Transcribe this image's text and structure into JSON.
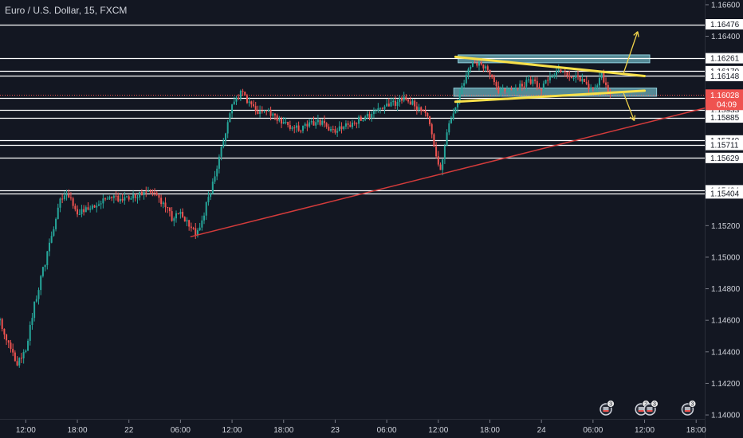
{
  "chart_data": {
    "type": "candlestick",
    "title": "Euro / U.S. Dollar, 15, FXCM",
    "ylim": [
      1.1397,
      1.1663
    ],
    "x_range_hours": [
      -3,
      79
    ],
    "grid": false,
    "y_ticks": [
      "1.16600",
      "1.16400",
      "1.15200",
      "1.15000",
      "1.14800",
      "1.14600",
      "1.14400",
      "1.14200",
      "1.14000"
    ],
    "x_ticks": [
      {
        "t": 0,
        "label": "12:00"
      },
      {
        "t": 6,
        "label": "18:00"
      },
      {
        "t": 12,
        "label": "22"
      },
      {
        "t": 18,
        "label": "06:00"
      },
      {
        "t": 24,
        "label": "12:00"
      },
      {
        "t": 30,
        "label": "18:00"
      },
      {
        "t": 36,
        "label": "23"
      },
      {
        "t": 42,
        "label": "06:00"
      },
      {
        "t": 48,
        "label": "12:00"
      },
      {
        "t": 54,
        "label": "18:00"
      },
      {
        "t": 60,
        "label": "24"
      },
      {
        "t": 66,
        "label": "06:00"
      },
      {
        "t": 72,
        "label": "12:00"
      },
      {
        "t": 78,
        "label": "18:00"
      }
    ],
    "horizontal_levels": [
      {
        "value": 1.16476,
        "label": "1.16476"
      },
      {
        "value": 1.16261,
        "label": "1.16261"
      },
      {
        "value": 1.16179,
        "label": "1.16179"
      },
      {
        "value": 1.16148,
        "label": "1.16148"
      },
      {
        "value": 1.1601,
        "label": "1.16010"
      },
      {
        "value": 1.15933,
        "label": "1.15933"
      },
      {
        "value": 1.15885,
        "label": "1.15885"
      },
      {
        "value": 1.1574,
        "label": "1.15740"
      },
      {
        "value": 1.15711,
        "label": "1.15711"
      },
      {
        "value": 1.15629,
        "label": "1.15629"
      },
      {
        "value": 1.15424,
        "label": "1.15424"
      },
      {
        "value": 1.15404,
        "label": "1.15404"
      }
    ],
    "current_price": {
      "value": 1.16028,
      "label": "1.16028",
      "countdown": "04:09"
    },
    "key_points": [
      {
        "t": -3,
        "price": 1.146
      },
      {
        "t": -2,
        "price": 1.1445
      },
      {
        "t": -1,
        "price": 1.1432
      },
      {
        "t": 0,
        "price": 1.144
      },
      {
        "t": 1,
        "price": 1.147
      },
      {
        "t": 2,
        "price": 1.1492
      },
      {
        "t": 3,
        "price": 1.1512
      },
      {
        "t": 4,
        "price": 1.1535
      },
      {
        "t": 5,
        "price": 1.154
      },
      {
        "t": 6,
        "price": 1.1528
      },
      {
        "t": 8,
        "price": 1.1532
      },
      {
        "t": 10,
        "price": 1.1538
      },
      {
        "t": 12,
        "price": 1.1537
      },
      {
        "t": 14,
        "price": 1.1542
      },
      {
        "t": 16,
        "price": 1.1535
      },
      {
        "t": 17,
        "price": 1.1525
      },
      {
        "t": 18,
        "price": 1.1528
      },
      {
        "t": 19,
        "price": 1.152
      },
      {
        "t": 20,
        "price": 1.1515
      },
      {
        "t": 21,
        "price": 1.1533
      },
      {
        "t": 22,
        "price": 1.155
      },
      {
        "t": 23,
        "price": 1.1575
      },
      {
        "t": 24,
        "price": 1.1595
      },
      {
        "t": 25,
        "price": 1.1605
      },
      {
        "t": 26,
        "price": 1.1598
      },
      {
        "t": 27,
        "price": 1.159
      },
      {
        "t": 28,
        "price": 1.1592
      },
      {
        "t": 30,
        "price": 1.1584
      },
      {
        "t": 32,
        "price": 1.1582
      },
      {
        "t": 34,
        "price": 1.1586
      },
      {
        "t": 36,
        "price": 1.158
      },
      {
        "t": 38,
        "price": 1.1585
      },
      {
        "t": 40,
        "price": 1.159
      },
      {
        "t": 42,
        "price": 1.1596
      },
      {
        "t": 44,
        "price": 1.16
      },
      {
        "t": 46,
        "price": 1.1594
      },
      {
        "t": 47,
        "price": 1.1585
      },
      {
        "t": 48.3,
        "price": 1.1552
      },
      {
        "t": 49,
        "price": 1.158
      },
      {
        "t": 50,
        "price": 1.1596
      },
      {
        "t": 51,
        "price": 1.1612
      },
      {
        "t": 52,
        "price": 1.1623
      },
      {
        "t": 53,
        "price": 1.1624
      },
      {
        "t": 54,
        "price": 1.1614
      },
      {
        "t": 55,
        "price": 1.1606
      },
      {
        "t": 56,
        "price": 1.1604
      },
      {
        "t": 57,
        "price": 1.1606
      },
      {
        "t": 58,
        "price": 1.161
      },
      {
        "t": 59,
        "price": 1.1612
      },
      {
        "t": 60,
        "price": 1.1607
      },
      {
        "t": 61,
        "price": 1.1614
      },
      {
        "t": 62,
        "price": 1.1617
      },
      {
        "t": 63,
        "price": 1.1616
      },
      {
        "t": 64,
        "price": 1.1613
      },
      {
        "t": 65,
        "price": 1.161
      },
      {
        "t": 66,
        "price": 1.1606
      },
      {
        "t": 67,
        "price": 1.1616
      },
      {
        "t": 68,
        "price": 1.16028
      }
    ],
    "trend_lines": [
      {
        "role": "support",
        "from": {
          "t": 19.2,
          "price": 1.1513
        },
        "to": {
          "t": 79,
          "price": 1.15945
        }
      },
      {
        "role": "triangle-upper",
        "from": {
          "t": 50,
          "price": 1.1627
        },
        "to": {
          "t": 72,
          "price": 1.16148
        }
      },
      {
        "role": "triangle-lower",
        "from": {
          "t": 50,
          "price": 1.15985
        },
        "to": {
          "t": 72,
          "price": 1.16055
        }
      }
    ],
    "zones": [
      {
        "role": "resistance",
        "t_from": 50.3,
        "t_to": 72.6,
        "top": 1.16282,
        "bottom": 1.16232
      },
      {
        "role": "support",
        "t_from": 49.8,
        "t_to": 73.4,
        "top": 1.16072,
        "bottom": 1.1602
      }
    ],
    "projection_arrows": [
      {
        "direction": "up",
        "from": {
          "t": 69.5,
          "price": 1.16158
        },
        "to": {
          "t": 71.2,
          "price": 1.1643
        }
      },
      {
        "direction": "down",
        "from": {
          "t": 69.5,
          "price": 1.16048
        },
        "to": {
          "t": 70.8,
          "price": 1.15865
        }
      }
    ],
    "event_badges": [
      {
        "t": 67.5,
        "count": "3"
      },
      {
        "t": 71.6,
        "count": "2"
      },
      {
        "t": 72.6,
        "count": "3"
      },
      {
        "t": 77.0,
        "count": "3"
      }
    ],
    "colors": {
      "background": "#131722",
      "up": "#26a69a",
      "down": "#ef5350",
      "level_line": "#ffffff",
      "support_line": "#d33b3b",
      "triangle_line": "#f7e04a",
      "zone_fill": "#6fb5c2",
      "arrow": "#f0d24a",
      "text": "#d1d4dc",
      "price_badge": "#ef5350"
    }
  }
}
